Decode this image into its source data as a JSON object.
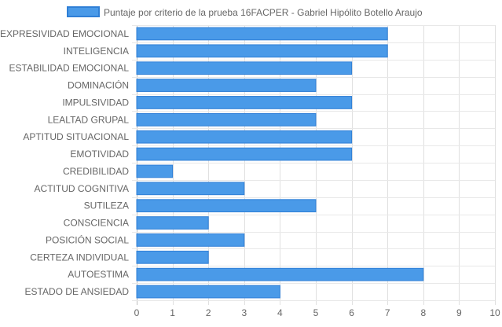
{
  "chart_data": {
    "type": "bar",
    "orientation": "horizontal",
    "series": [
      {
        "name": "Puntaje por criterio de la prueba 16FACPER - Gabriel Hipólito Botello Araujo",
        "color": "#4a9ae8",
        "border_color": "#2f7fd6",
        "values": [
          7,
          7,
          6,
          5,
          6,
          5,
          6,
          6,
          1,
          3,
          5,
          2,
          3,
          2,
          8,
          4
        ]
      }
    ],
    "categories": [
      "EXPRESIVIDAD EMOCIONAL",
      "INTELIGENCIA",
      "ESTABILIDAD EMOCIONAL",
      "DOMINACIÓN",
      "IMPULSIVIDAD",
      "LEALTAD GRUPAL",
      "APTITUD SITUACIONAL",
      "EMOTIVIDAD",
      "CREDIBILIDAD",
      "ACTITUD COGNITIVA",
      "SUTILEZA",
      "CONSCIENCIA",
      "POSICIÓN SOCIAL",
      "CERTEZA INDIVIDUAL",
      "AUTOESTIMA",
      "ESTADO DE ANSIEDAD"
    ],
    "xlim": [
      0,
      10
    ],
    "xticks": [
      "0",
      "1",
      "2",
      "3",
      "4",
      "5",
      "6",
      "7",
      "8",
      "9",
      "10"
    ],
    "grid": true,
    "legend_position": "top"
  }
}
